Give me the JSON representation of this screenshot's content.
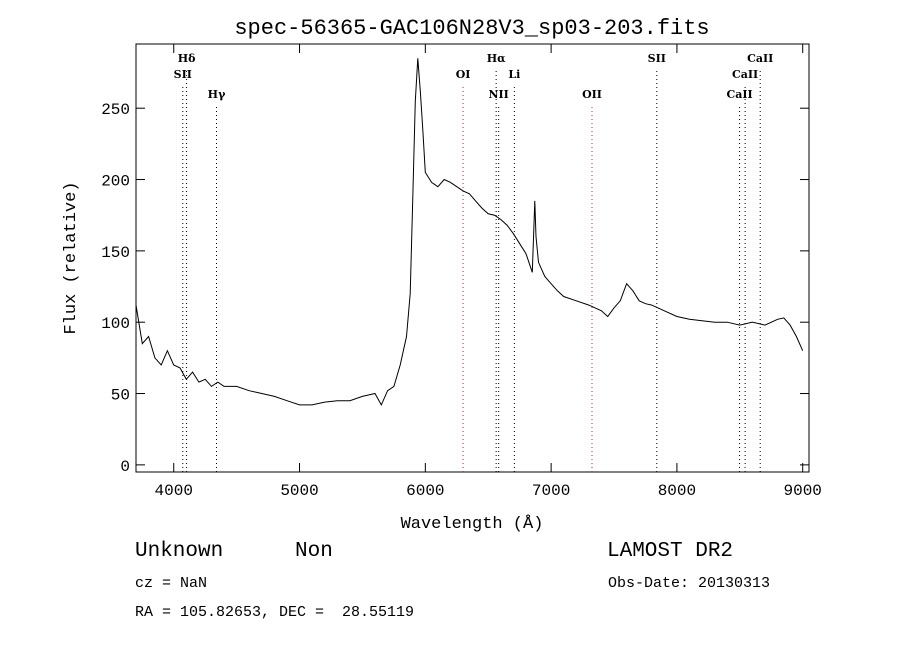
{
  "chart_data": {
    "type": "line",
    "title": "spec-56365-GAC106N28V3_sp03-203.fits",
    "xlabel": "Wavelength (Å)",
    "ylabel": "Flux (relative)",
    "xlim": [
      3700,
      9050
    ],
    "ylim": [
      -5,
      295
    ],
    "x_ticks": [
      4000,
      5000,
      6000,
      7000,
      8000,
      9000
    ],
    "y_ticks": [
      0,
      50,
      100,
      150,
      200,
      250
    ],
    "grid": false,
    "series": [
      {
        "color": "#000000",
        "x": [
          3700,
          3750,
          3800,
          3850,
          3900,
          3950,
          4000,
          4050,
          4100,
          4150,
          4200,
          4250,
          4300,
          4350,
          4400,
          4500,
          4600,
          4700,
          4800,
          4900,
          5000,
          5100,
          5200,
          5300,
          5400,
          5500,
          5600,
          5650,
          5700,
          5750,
          5800,
          5850,
          5880,
          5900,
          5920,
          5940,
          5960,
          5980,
          6000,
          6050,
          6100,
          6150,
          6200,
          6250,
          6300,
          6350,
          6400,
          6450,
          6500,
          6550,
          6600,
          6650,
          6700,
          6750,
          6800,
          6850,
          6870,
          6880,
          6900,
          6950,
          7000,
          7050,
          7100,
          7200,
          7300,
          7400,
          7450,
          7500,
          7550,
          7600,
          7650,
          7700,
          7750,
          7800,
          7900,
          8000,
          8100,
          8200,
          8300,
          8400,
          8500,
          8600,
          8700,
          8800,
          8850,
          8900,
          8950,
          9000
        ],
        "y": [
          112,
          85,
          90,
          75,
          70,
          80,
          70,
          68,
          60,
          65,
          58,
          60,
          55,
          58,
          55,
          55,
          52,
          50,
          48,
          45,
          42,
          42,
          44,
          45,
          45,
          48,
          50,
          42,
          52,
          55,
          70,
          90,
          120,
          185,
          255,
          285,
          262,
          235,
          205,
          198,
          195,
          200,
          198,
          195,
          192,
          190,
          185,
          180,
          176,
          175,
          172,
          168,
          162,
          155,
          148,
          135,
          185,
          160,
          142,
          132,
          127,
          122,
          118,
          115,
          112,
          108,
          104,
          110,
          115,
          127,
          122,
          115,
          113,
          112,
          108,
          104,
          102,
          101,
          100,
          100,
          98,
          100,
          98,
          102,
          103,
          98,
          90,
          80
        ]
      }
    ],
    "line_markers": [
      {
        "name": "Hδ",
        "x": 4102,
        "color": "#000000",
        "label_row": 0
      },
      {
        "name": "SII",
        "x": 4072,
        "color": "#000000",
        "label_row": 1
      },
      {
        "name": "Hγ",
        "x": 4340,
        "color": "#000000",
        "label_row": 2
      },
      {
        "name": "OI",
        "x": 6300,
        "color": "#cc2222",
        "label_row": 1
      },
      {
        "name": "Hα",
        "x": 6563,
        "color": "#000000",
        "label_row": 0
      },
      {
        "name": "NII",
        "x": 6583,
        "color": "#000000",
        "label_row": 2
      },
      {
        "name": "Li",
        "x": 6708,
        "color": "#000000",
        "label_row": 1
      },
      {
        "name": "OII",
        "x": 7325,
        "color": "#cc2222",
        "label_row": 2
      },
      {
        "name": "SII",
        "x": 7840,
        "color": "#000000",
        "label_row": 0
      },
      {
        "name": "CaII",
        "x": 8498,
        "color": "#000000",
        "label_row": 2
      },
      {
        "name": "CaII",
        "x": 8542,
        "color": "#000000",
        "label_row": 1
      },
      {
        "name": "CaII",
        "x": 8662,
        "color": "#000000",
        "label_row": 0
      }
    ]
  },
  "info": {
    "class": "Unknown",
    "subclass": "Non",
    "survey": "LAMOST DR2",
    "cz": "cz = NaN",
    "obs_date": "Obs-Date: 20130313",
    "coords": "RA = 105.82653, DEC =  28.55119"
  }
}
